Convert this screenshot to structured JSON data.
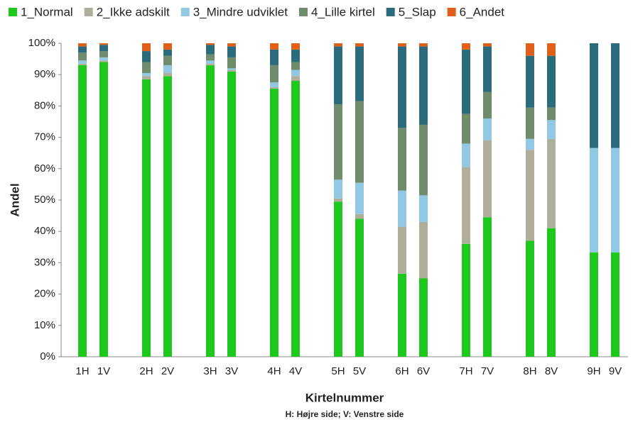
{
  "chart_data": {
    "type": "stacked_bar",
    "categories": [
      "1H",
      "1V",
      null,
      "2H",
      "2V",
      null,
      "3H",
      "3V",
      null,
      "4H",
      "4V",
      null,
      "5H",
      "5V",
      null,
      "6H",
      "6V",
      null,
      "7H",
      "7V",
      null,
      "8H",
      "8V",
      null,
      "9H",
      "9V"
    ],
    "series": [
      {
        "name": "1_Normal",
        "color": "#1ec81e",
        "values": [
          93,
          94,
          null,
          88.5,
          89.5,
          null,
          93,
          91,
          null,
          85.5,
          88,
          null,
          49.5,
          44,
          null,
          26.5,
          25,
          null,
          36,
          44.5,
          null,
          37,
          41,
          null,
          33.3,
          33.3
        ]
      },
      {
        "name": "2_Ikke adskilt",
        "color": "#aeae9a",
        "values": [
          0.5,
          0.5,
          null,
          1,
          1,
          null,
          0.5,
          0.5,
          null,
          0.5,
          1.5,
          null,
          1,
          1.5,
          null,
          15,
          18,
          null,
          24.5,
          24.5,
          null,
          29,
          28.5,
          null,
          0,
          0
        ]
      },
      {
        "name": "3_Mindre udviklet",
        "color": "#92c8e4",
        "values": [
          1,
          1,
          null,
          1,
          2.5,
          null,
          1,
          0.5,
          null,
          1.5,
          2,
          null,
          6,
          10,
          null,
          11.5,
          8.5,
          null,
          7.5,
          7,
          null,
          3.5,
          6,
          null,
          33.3,
          33.3
        ]
      },
      {
        "name": "4_Lille kirtel",
        "color": "#6f8c6c",
        "values": [
          2.5,
          2,
          null,
          3.5,
          3,
          null,
          2,
          3.5,
          null,
          5.5,
          2.5,
          null,
          24,
          26,
          null,
          20,
          22.5,
          null,
          9.5,
          8.5,
          null,
          10,
          4,
          null,
          0,
          0
        ]
      },
      {
        "name": "5_Slap",
        "color": "#2c6b7c",
        "values": [
          2,
          2,
          null,
          3.5,
          2,
          null,
          3,
          3.5,
          null,
          5,
          4,
          null,
          18.5,
          17.5,
          null,
          26,
          25,
          null,
          20.5,
          14.5,
          null,
          16.5,
          16.5,
          null,
          33.4,
          33.4
        ]
      },
      {
        "name": "6_Andet",
        "color": "#e0601a",
        "values": [
          1,
          0.5,
          null,
          2.5,
          2,
          null,
          0.5,
          1,
          null,
          2,
          2,
          null,
          1,
          1,
          null,
          1,
          1,
          null,
          2,
          1,
          null,
          4,
          4,
          null,
          0,
          0
        ]
      }
    ],
    "ylim": [
      0,
      100
    ],
    "yticks": [
      {
        "value": 0,
        "label": "0%"
      },
      {
        "value": 10,
        "label": "10%"
      },
      {
        "value": 20,
        "label": "20%"
      },
      {
        "value": 30,
        "label": "30%"
      },
      {
        "value": 40,
        "label": "40%"
      },
      {
        "value": 50,
        "label": "50%"
      },
      {
        "value": 60,
        "label": "60%"
      },
      {
        "value": 70,
        "label": "70%"
      },
      {
        "value": 80,
        "label": "80%"
      },
      {
        "value": 90,
        "label": "90%"
      },
      {
        "value": 100,
        "label": "100%"
      }
    ],
    "y_label": "Andel",
    "x_label": "Kirtelnummer",
    "note": "H: Højre side; V: Venstre side",
    "legend": "top"
  }
}
